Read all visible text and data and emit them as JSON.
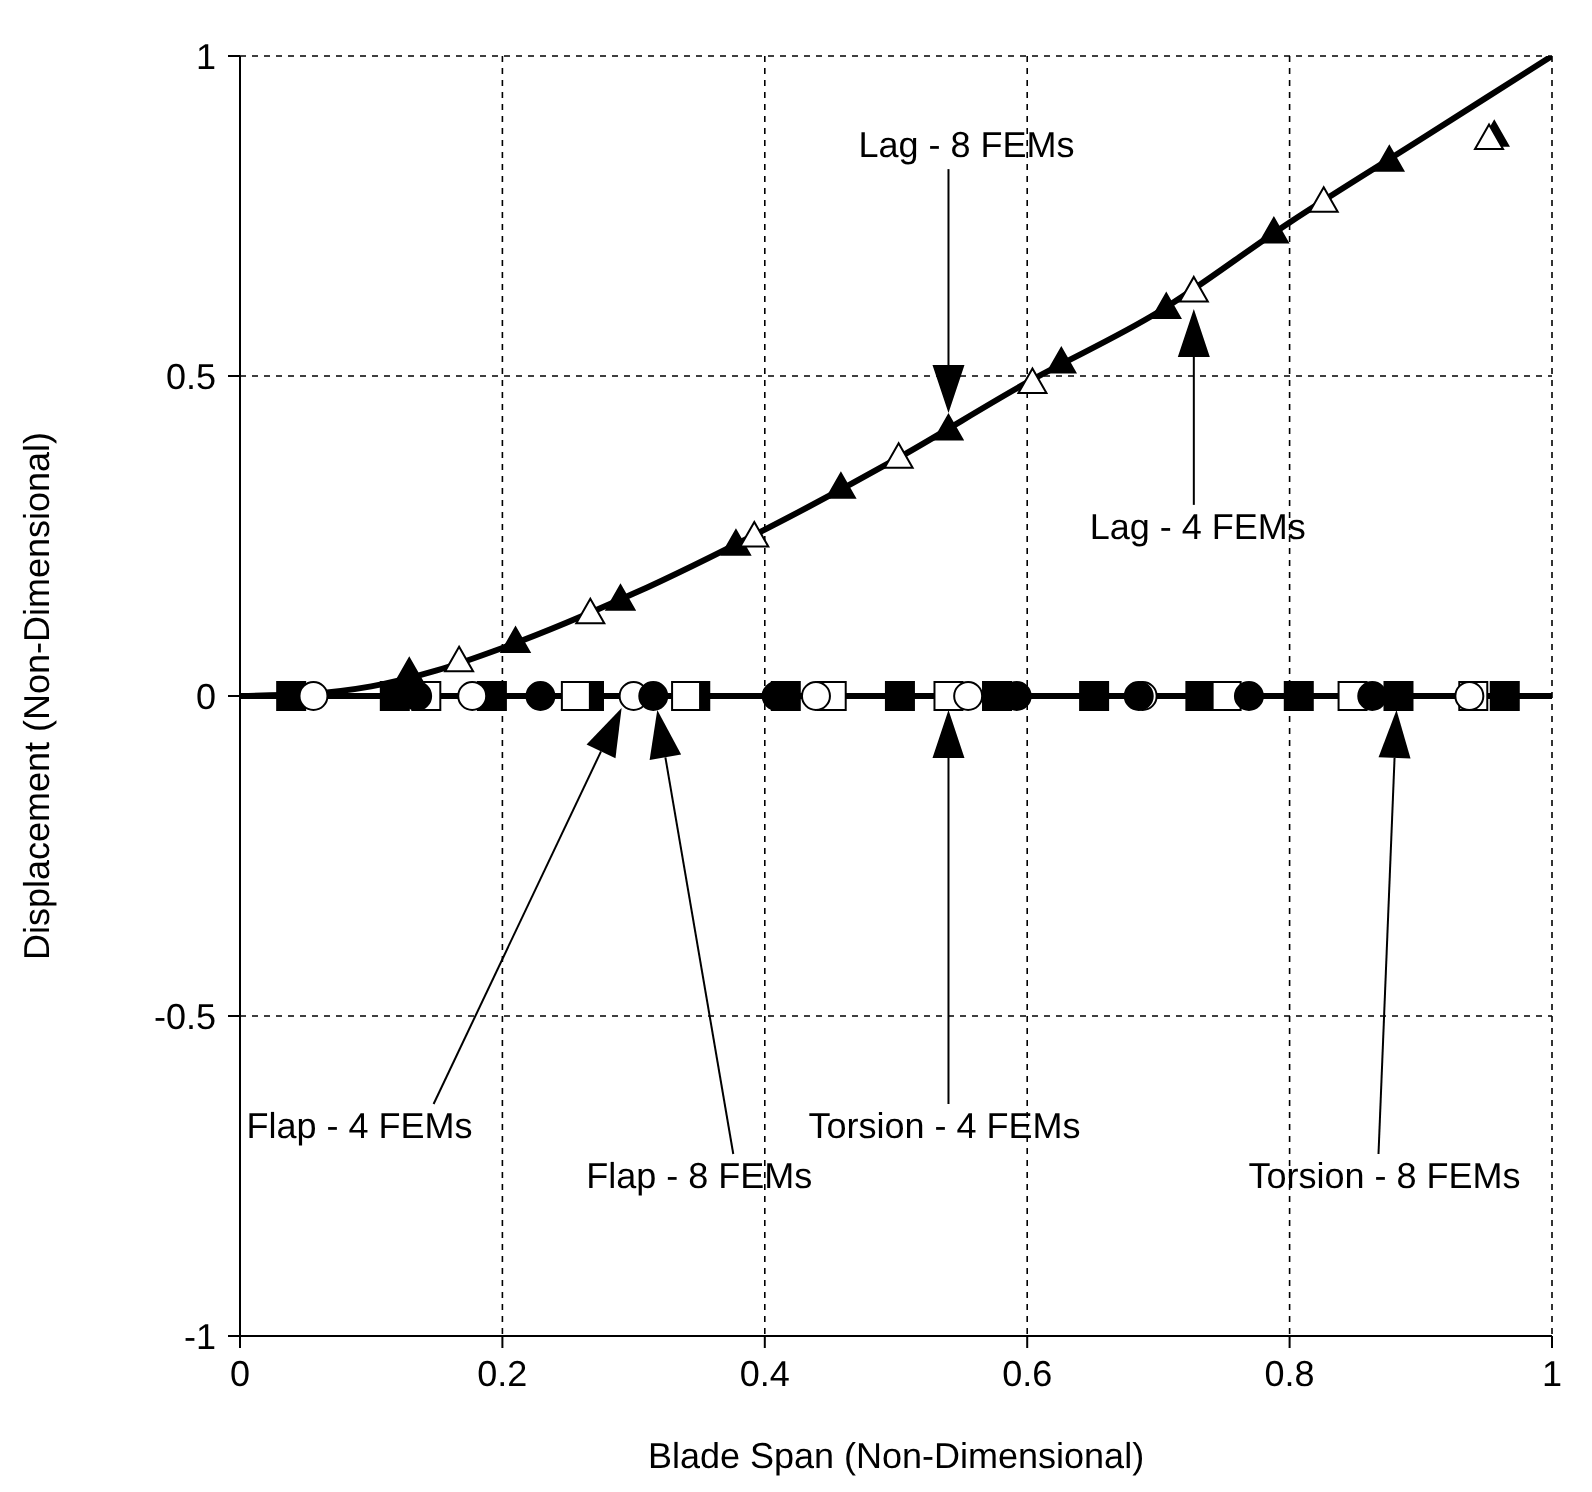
{
  "chart_data": {
    "type": "scatter",
    "xlabel": "Blade Span (Non-Dimensional)",
    "ylabel": "Displacement (Non-Dimensional)",
    "xlim": [
      0,
      1
    ],
    "ylim": [
      -1,
      1
    ],
    "xticks": [
      0,
      0.2,
      0.4,
      0.6,
      0.8,
      1
    ],
    "yticks": [
      -1,
      -0.5,
      0,
      0.5,
      1
    ],
    "grid": true,
    "ref_lines": [
      {
        "axis": "y",
        "value": 0,
        "color": "#000000"
      }
    ],
    "annotations": [
      "Lag - 8 FEMs",
      "Lag - 4 FEMs",
      "Flap - 4 FEMs",
      "Flap - 8 FEMs",
      "Torsion - 4 FEMs",
      "Torsion - 8 FEMs"
    ],
    "series": [
      {
        "type": "line",
        "color": "#000000",
        "marker": "none",
        "x": [
          0,
          0.05,
          0.1,
          0.15,
          0.2,
          0.3,
          0.4,
          0.5,
          0.6,
          0.7,
          0.8,
          0.9,
          1
        ],
        "values": [
          0,
          0.003,
          0.015,
          0.04,
          0.075,
          0.16,
          0.26,
          0.37,
          0.49,
          0.6,
          0.74,
          0.87,
          1
        ]
      },
      {
        "color": "#000000",
        "marker": "triangle",
        "x": [
          0.129,
          0.21,
          0.29,
          0.378,
          0.458,
          0.54,
          0.626,
          0.706,
          0.788,
          0.876,
          0.956
        ],
        "values": [
          0.037,
          0.085,
          0.151,
          0.237,
          0.326,
          0.417,
          0.522,
          0.607,
          0.725,
          0.837,
          0.876
        ]
      },
      {
        "color": "#ffffff",
        "marker": "triangle",
        "x": [
          0.167,
          0.267,
          0.392,
          0.502,
          0.604,
          0.727,
          0.826,
          0.952
        ],
        "values": [
          0.055,
          0.13,
          0.25,
          0.373,
          0.49,
          0.633,
          0.773,
          0.871
        ]
      },
      {
        "color": "#000000",
        "marker": "square",
        "x": [
          0.039,
          0.118,
          0.192,
          0.266,
          0.347,
          0.416,
          0.503,
          0.577,
          0.651,
          0.732,
          0.807,
          0.883,
          0.964
        ],
        "values": [
          0,
          0,
          0,
          0,
          0,
          0,
          0,
          0,
          0,
          0,
          0,
          0,
          0
        ]
      },
      {
        "color": "#ffffff",
        "marker": "square",
        "x": [
          0.142,
          0.256,
          0.34,
          0.451,
          0.54,
          0.752,
          0.848,
          0.94
        ],
        "values": [
          0,
          0,
          0,
          0,
          0,
          0,
          0,
          0
        ]
      },
      {
        "color": "#ffffff",
        "marker": "circle",
        "x": [
          0.056,
          0.177,
          0.3,
          0.439,
          0.555,
          0.688,
          0.937
        ],
        "values": [
          0,
          0,
          0,
          0,
          0,
          0,
          0
        ]
      },
      {
        "color": "#000000",
        "marker": "circle",
        "x": [
          0.135,
          0.229,
          0.315,
          0.409,
          0.592,
          0.685,
          0.769,
          0.863
        ],
        "values": [
          0,
          0,
          0,
          0,
          0,
          0,
          0,
          0
        ]
      }
    ]
  }
}
